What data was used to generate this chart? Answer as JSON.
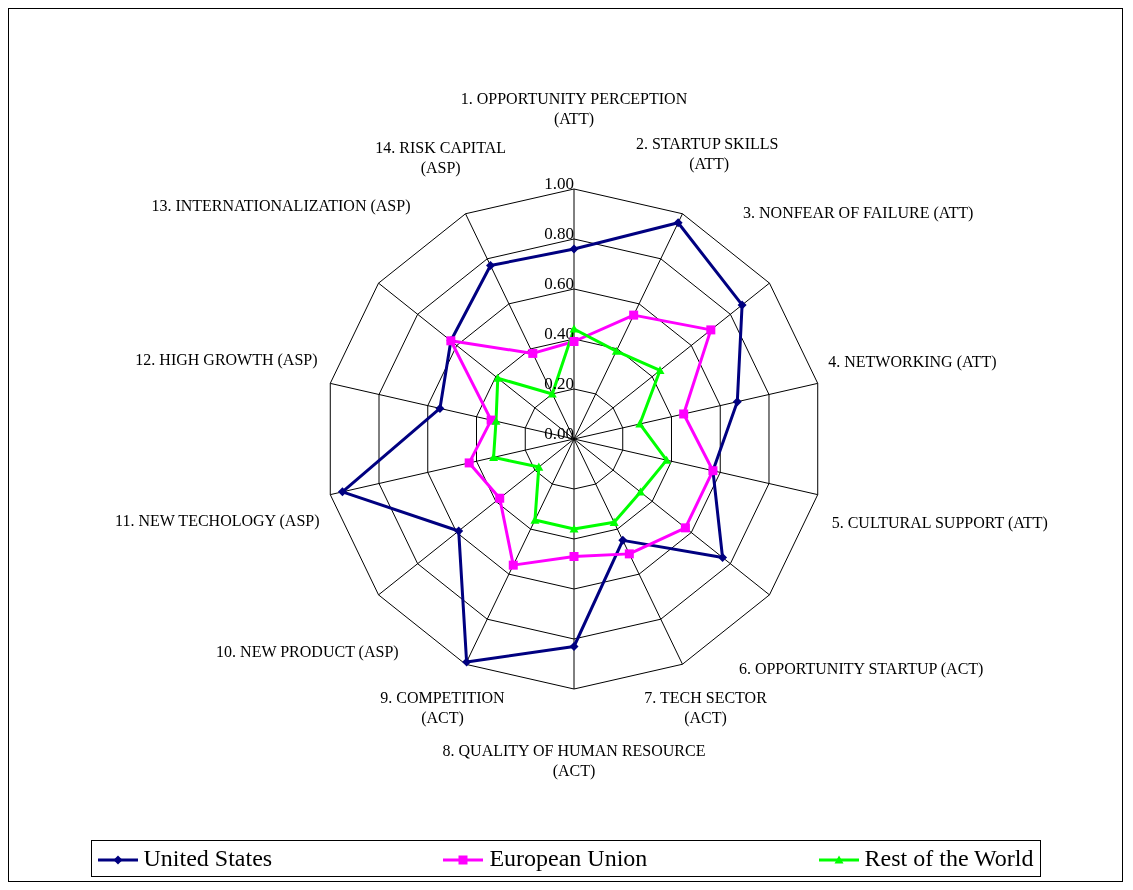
{
  "chart_data": {
    "type": "radar",
    "categories": [
      "1. OPPORTUNITY PERCEPTION (ATT)",
      "2. STARTUP SKILLS  (ATT)",
      "3. NONFEAR OF FAILURE (ATT)",
      "4. NETWORKING (ATT)",
      "5. CULTURAL SUPPORT (ATT)",
      "6. OPPORTUNITY STARTUP (ACT)",
      "7. TECH SECTOR (ACT)",
      "8. QUALITY OF HUMAN RESOURCE (ACT)",
      "9. COMPETITION (ACT)",
      "10. NEW PRODUCT (ASP)",
      "11. NEW TECHOLOGY (ASP)",
      "12. HIGH GROWTH (ASP)",
      "13. INTERNATIONALIZATION (ASP)",
      "14. RISK CAPITAL (ASP)"
    ],
    "series": [
      {
        "name": "United States",
        "color": "#000080",
        "marker": "diamond",
        "values": [
          0.76,
          0.96,
          0.86,
          0.67,
          0.57,
          0.76,
          0.45,
          0.83,
          0.99,
          0.59,
          0.95,
          0.55,
          0.63,
          0.77
        ]
      },
      {
        "name": "European Union",
        "color": "#ff00ff",
        "marker": "square",
        "values": [
          0.39,
          0.55,
          0.7,
          0.45,
          0.57,
          0.57,
          0.51,
          0.47,
          0.56,
          0.38,
          0.43,
          0.34,
          0.63,
          0.38
        ]
      },
      {
        "name": "Rest of the World",
        "color": "#00ff00",
        "marker": "triangle",
        "values": [
          0.44,
          0.39,
          0.44,
          0.27,
          0.38,
          0.34,
          0.37,
          0.36,
          0.36,
          0.18,
          0.33,
          0.32,
          0.39,
          0.2
        ]
      }
    ],
    "ylim": [
      0,
      1
    ],
    "yticks": [
      {
        "value": 0,
        "label": "0.00"
      },
      {
        "value": 0.2,
        "label": "0.20"
      },
      {
        "value": 0.4,
        "label": "0.40"
      },
      {
        "value": 0.6,
        "label": "0.60"
      },
      {
        "value": 0.8,
        "label": "0.80"
      },
      {
        "value": 1,
        "label": "1.00"
      }
    ],
    "grid": true,
    "legend": "bottom"
  }
}
